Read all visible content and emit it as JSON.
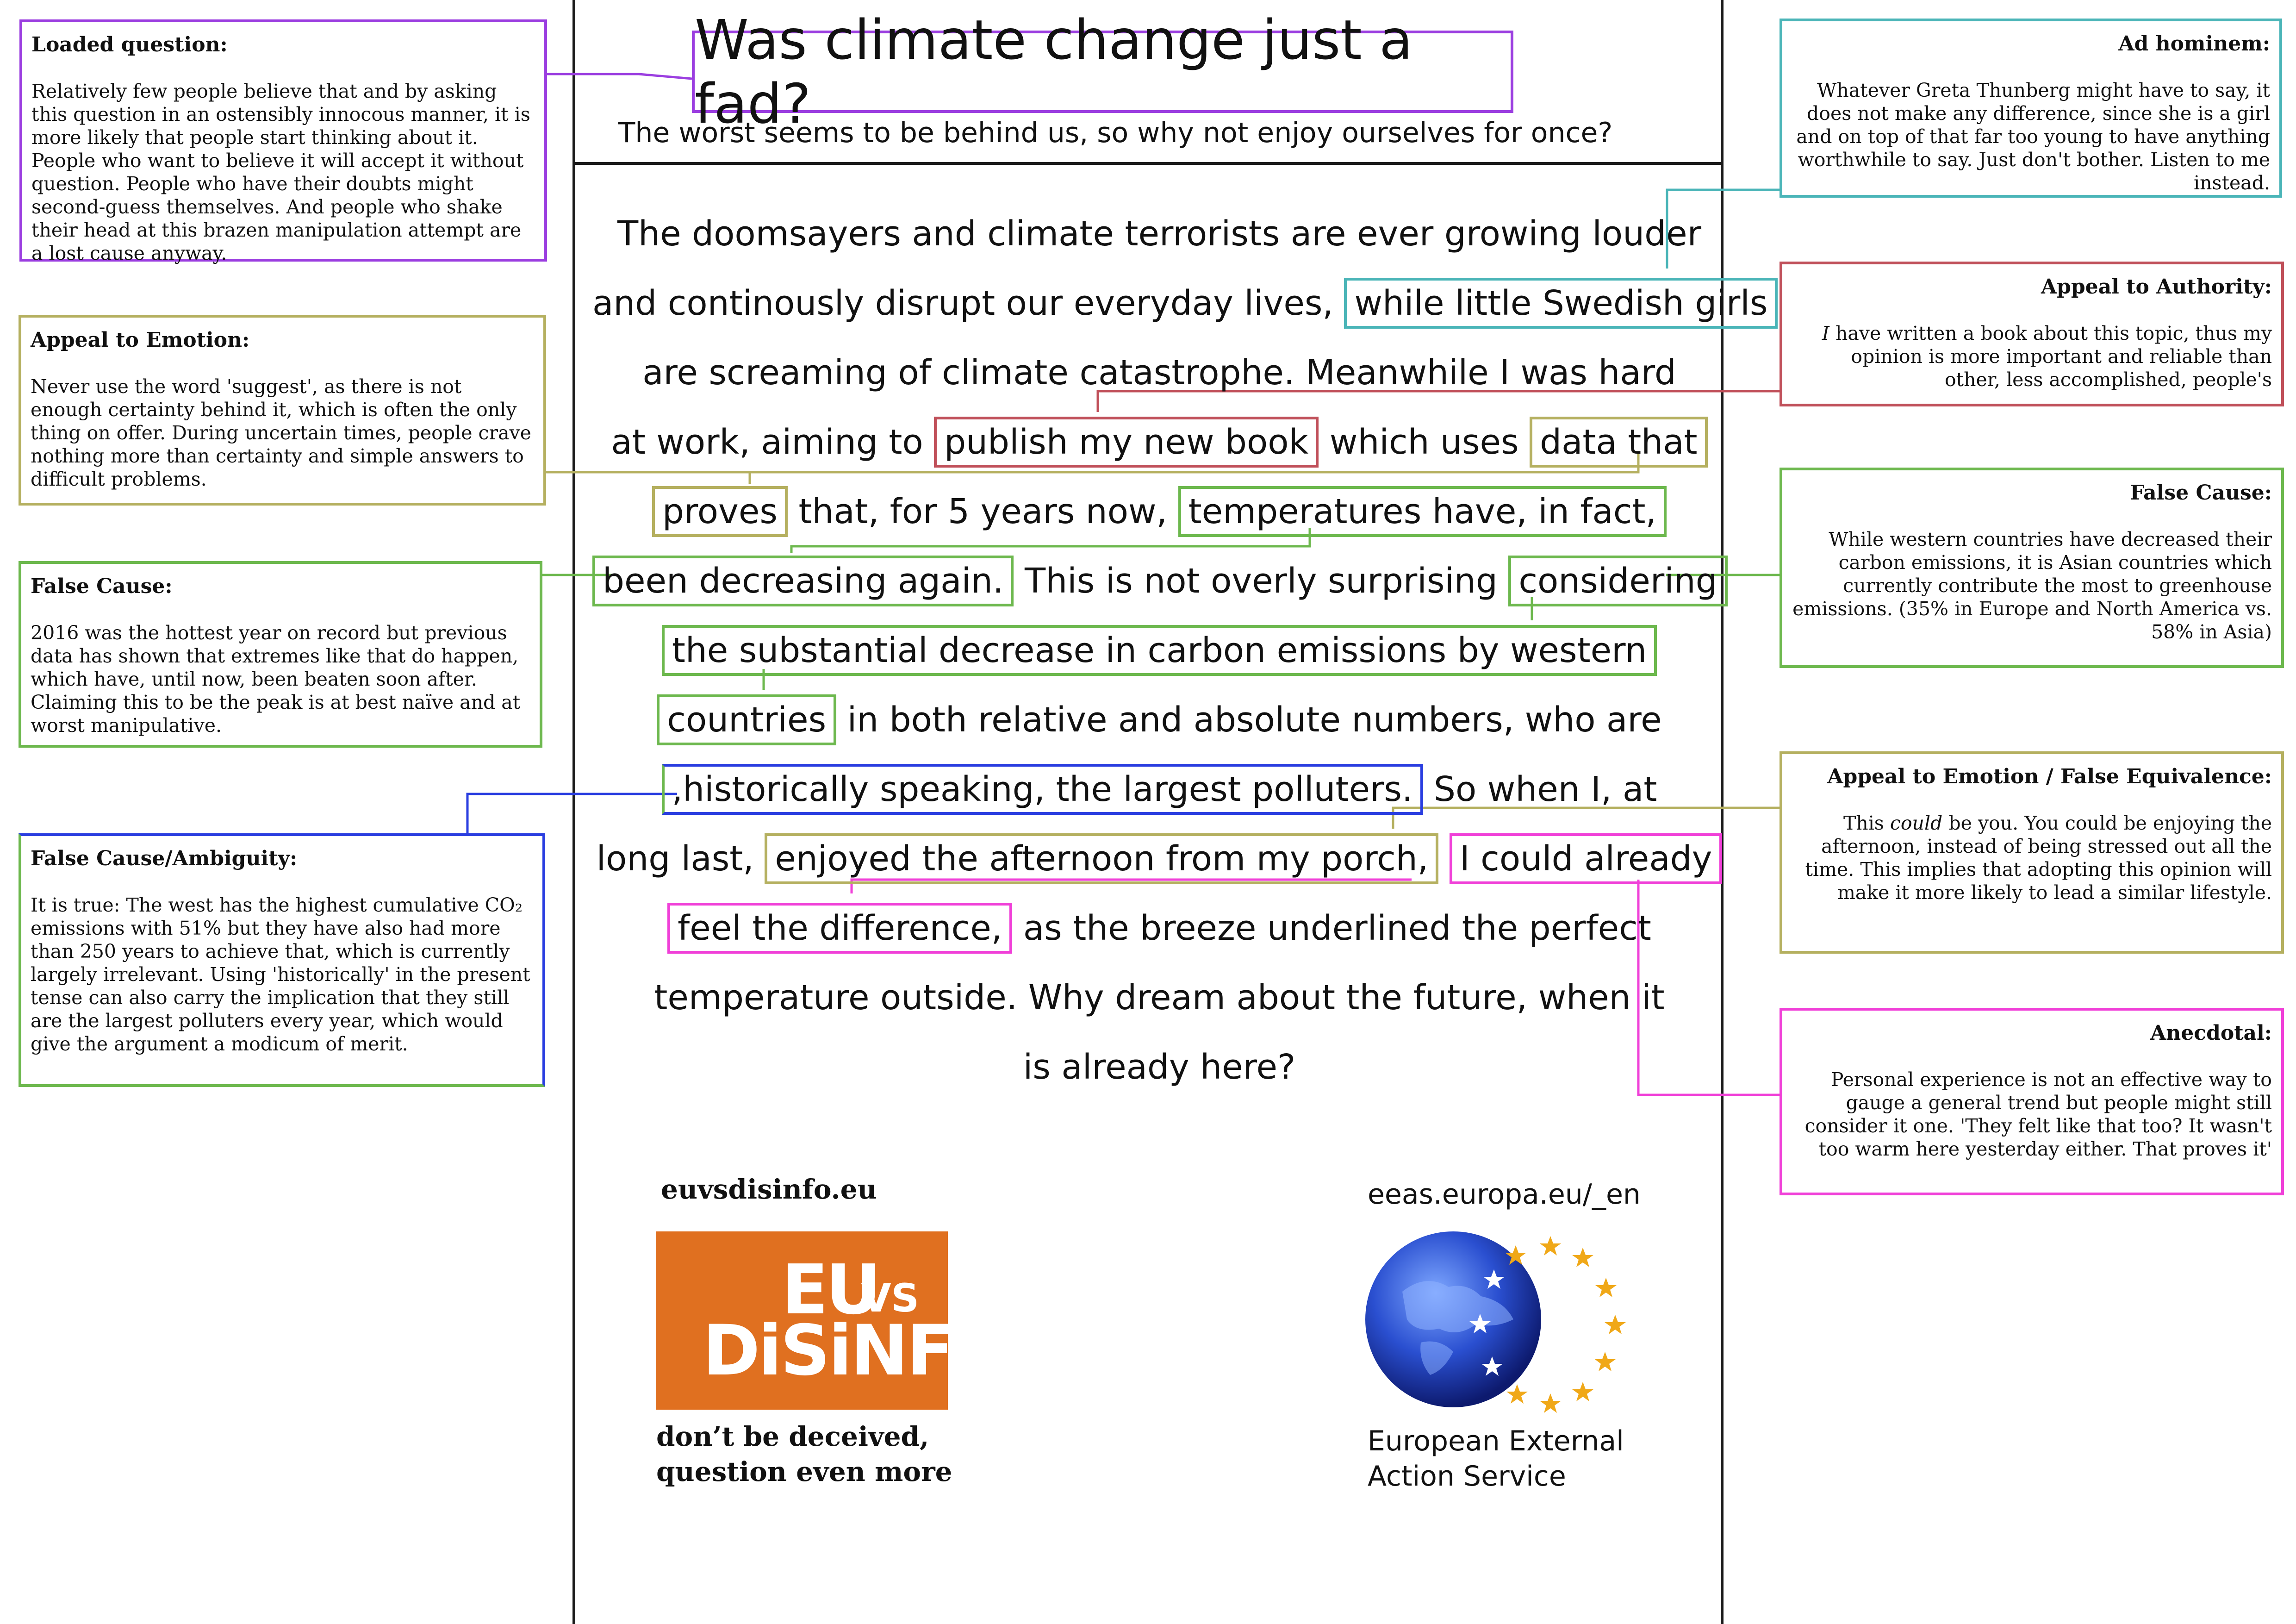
{
  "title": "Was climate change just a fad?",
  "subtitle": "The worst seems to be behind us, so why not enjoy ourselves for once?",
  "body": {
    "l1": "The doomsayers and climate terrorists are ever growing louder",
    "l2a": "and continously disrupt our everyday lives,",
    "l2b": "while little Swedish girls",
    "l3": "are screaming of climate catastrophe. Meanwhile I was hard",
    "l4a": "at work, aiming to",
    "l4b": "publish my new book",
    "l4c": "which uses",
    "l4d": "data that",
    "l5a": "proves",
    "l5b": "that, for 5 years now,",
    "l5c": "temperatures have, in fact,",
    "l6a": "been decreasing again.",
    "l6b": "This is not overly surprising",
    "l6c": "considering",
    "l7": "the substantial decrease in carbon emissions by western",
    "l8a": "countries",
    "l8b": "in both relative and absolute numbers, who are",
    "l9a": ",historically speaking, the largest polluters.",
    "l9b": "So when I, at",
    "l10a": "long last,",
    "l10b": "enjoyed the afternoon from my porch,",
    "l10c": "I could already",
    "l11a": "feel the difference,",
    "l11b": "as the breeze underlined the perfect",
    "l12": "temperature outside. Why dream about the future, when it",
    "l13": "is already here?"
  },
  "notes": {
    "loaded": {
      "head": "Loaded question:",
      "body": "Relatively few people believe that and by asking this question in an ostensibly innocous manner, it is more likely that people start thinking about it. People who want to believe it will accept it without question. People who have their doubts might second-guess themselves. And people who shake their head at this brazen manipulation attempt are a lost cause anyway."
    },
    "emotion": {
      "head": "Appeal to Emotion:",
      "body": "Never use the word 'suggest', as there is not enough certainty behind it, which is often the only thing on offer. During uncertain times, people crave nothing more than certainty and simple answers to difficult problems."
    },
    "false_cause_left": {
      "head": "False Cause:",
      "body": "2016 was the hottest year on record but previous data has shown that extremes like that do happen, which have, until now, been beaten soon after. Claiming this to be the peak is at best naïve and at worst manipulative."
    },
    "ambiguity": {
      "head": "False Cause/Ambiguity:",
      "body": "It is true: The west has the highest cumulative CO₂ emissions with 51% but they have also had more than 250 years to achieve that, which is currently largely irrelevant. Using 'historically' in the present tense can also carry the implication that they still are the largest polluters every year, which would give the argument a modicum of merit."
    },
    "ad_hominem": {
      "head": "Ad hominem:",
      "body": "Whatever Greta Thunberg might have to say, it does not make any difference, since she is a girl and on top of that far too young to have anything worthwhile to say. Just don't bother. Listen to me instead."
    },
    "authority": {
      "head": "Appeal to Authority:",
      "body_em": "I",
      "body": " have written a book about this topic, thus my opinion is more important and reliable than other, less accomplished, people's"
    },
    "false_cause_right": {
      "head": "False Cause:",
      "body": "While western countries have decreased their carbon emissions, it is Asian countries which currently contribute the most to greenhouse emissions. (35% in Europe and North America vs. 58% in Asia)"
    },
    "equivalence": {
      "head": "Appeal to Emotion / False Equivalence:",
      "body_pre": "This ",
      "body_em": "could",
      "body": " be you. You could be enjoying the afternoon, instead of being stressed out all the time. This implies that adopting this opinion will make it more likely to lead a similar lifestyle."
    },
    "anecdotal": {
      "head": "Anecdotal:",
      "body": "Personal experience is not an effective way to gauge a general trend but people might still consider it one. 'They felt like that too? It wasn't too warm here yesterday either. That proves it'"
    }
  },
  "footer": {
    "site_left": "euvsdisinfo.eu",
    "logo_eu": "EU",
    "logo_vs": "VS",
    "logo_disinfo": "DiSiNFO",
    "tagline_1": "don’t be deceived,",
    "tagline_2": "question even more",
    "site_right": "eeas.europa.eu/_en",
    "eeas_1": "European External",
    "eeas_2": "Action Service"
  },
  "colors": {
    "purple": "#9b3ee0",
    "olive": "#b5b060",
    "green": "#6db84e",
    "blue": "#2a3ee0",
    "teal": "#4bb5b8",
    "red": "#c0505a",
    "magenta": "#f040d8",
    "orange": "#e07020"
  }
}
